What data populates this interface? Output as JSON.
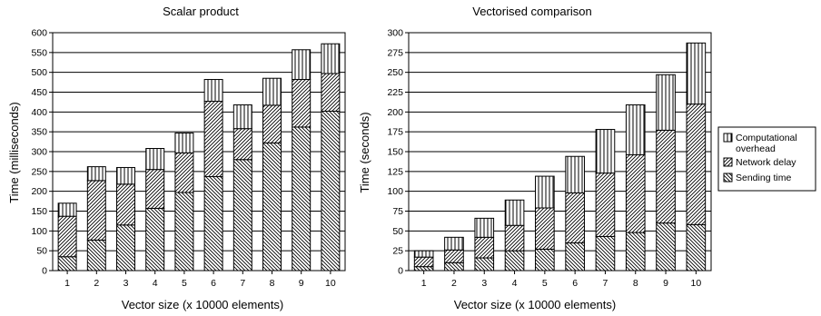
{
  "chart_data": [
    {
      "type": "bar",
      "stacked": true,
      "title": "Scalar product",
      "xlabel": "Vector size (x 10000 elements)",
      "ylabel": "Time (milliseconds)",
      "categories": [
        "1",
        "2",
        "3",
        "4",
        "5",
        "6",
        "7",
        "8",
        "9",
        "10"
      ],
      "ylim": [
        0,
        600
      ],
      "yticks": [
        0,
        50,
        100,
        150,
        200,
        250,
        300,
        350,
        400,
        450,
        500,
        550,
        600
      ],
      "grid": true,
      "series": [
        {
          "name": "Sending time",
          "values": [
            35,
            77,
            115,
            157,
            197,
            237,
            280,
            322,
            362,
            402
          ]
        },
        {
          "name": "Network delay",
          "values": [
            102,
            150,
            103,
            98,
            100,
            190,
            78,
            95,
            120,
            95
          ]
        },
        {
          "name": "Computational overhead",
          "values": [
            33,
            35,
            42,
            53,
            50,
            55,
            60,
            68,
            75,
            75
          ]
        }
      ]
    },
    {
      "type": "bar",
      "stacked": true,
      "title": "Vectorised comparison",
      "xlabel": "Vector size (x 10000 elements)",
      "ylabel": "Time (seconds)",
      "categories": [
        "1",
        "2",
        "3",
        "4",
        "5",
        "6",
        "7",
        "8",
        "9",
        "10"
      ],
      "ylim": [
        0,
        300
      ],
      "yticks": [
        0,
        25,
        50,
        75,
        100,
        125,
        150,
        175,
        200,
        225,
        250,
        275,
        300
      ],
      "grid": true,
      "legend": "right",
      "series": [
        {
          "name": "Sending time",
          "values": [
            5,
            10,
            16,
            25,
            27,
            35,
            43,
            48,
            60,
            58
          ]
        },
        {
          "name": "Network delay",
          "values": [
            12,
            16,
            26,
            32,
            52,
            63,
            80,
            98,
            117,
            152
          ]
        },
        {
          "name": "Computational overhead",
          "values": [
            8,
            16,
            24,
            32,
            40,
            46,
            55,
            63,
            70,
            77
          ]
        }
      ]
    }
  ],
  "legend": {
    "items": [
      {
        "label": "Computational",
        "label2": "overhead",
        "pattern": "vertical"
      },
      {
        "label": "Network delay",
        "pattern": "forward"
      },
      {
        "label": "Sending time",
        "pattern": "backward"
      }
    ]
  }
}
